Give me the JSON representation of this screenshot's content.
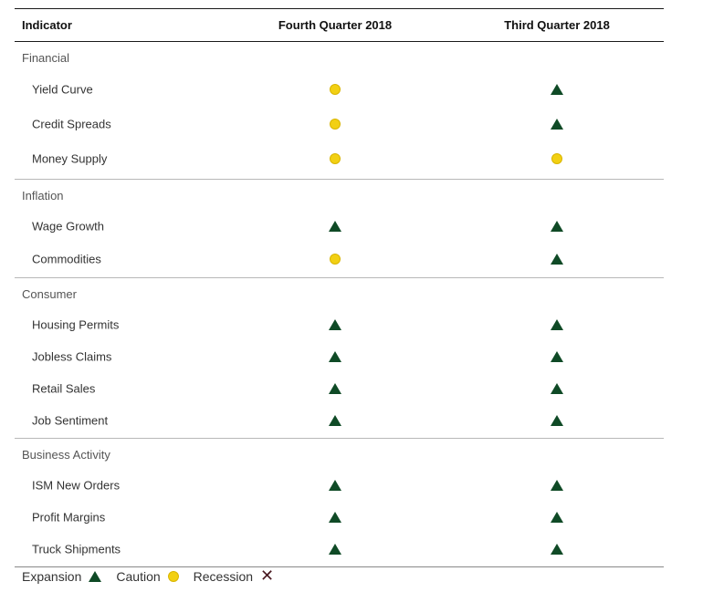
{
  "header": {
    "indicator_label": "Indicator",
    "col_q4": "Fourth Quarter 2018",
    "col_q3": "Third Quarter 2018"
  },
  "groups": [
    {
      "title": "Financial",
      "rows": [
        {
          "label": "Yield Curve",
          "q4": "caution",
          "q3": "expansion"
        },
        {
          "label": "Credit Spreads",
          "q4": "caution",
          "q3": "expansion"
        },
        {
          "label": "Money Supply",
          "q4": "caution",
          "q3": "caution"
        }
      ]
    },
    {
      "title": "Inflation",
      "rows": [
        {
          "label": "Wage Growth",
          "q4": "expansion",
          "q3": "expansion"
        },
        {
          "label": "Commodities",
          "q4": "caution",
          "q3": "expansion"
        }
      ]
    },
    {
      "title": "Consumer",
      "rows": [
        {
          "label": "Housing Permits",
          "q4": "expansion",
          "q3": "expansion"
        },
        {
          "label": "Jobless Claims",
          "q4": "expansion",
          "q3": "expansion"
        },
        {
          "label": "Retail Sales",
          "q4": "expansion",
          "q3": "expansion"
        },
        {
          "label": "Job Sentiment",
          "q4": "expansion",
          "q3": "expansion"
        }
      ]
    },
    {
      "title": "Business Activity",
      "rows": [
        {
          "label": "ISM New Orders",
          "q4": "expansion",
          "q3": "expansion"
        },
        {
          "label": "Profit Margins",
          "q4": "expansion",
          "q3": "expansion"
        },
        {
          "label": "Truck Shipments",
          "q4": "expansion",
          "q3": "expansion"
        }
      ]
    }
  ],
  "legend": {
    "expansion_label": "Expansion",
    "caution_label": "Caution",
    "recession_label": "Recession",
    "recession_symbol": "✕"
  },
  "colors": {
    "expansion": "#0f4a26",
    "caution": "#f2d013",
    "recession": "#4a1a22"
  },
  "icons": {
    "expansion": "triangle-up-icon",
    "caution": "circle-icon",
    "recession": "x-mark-icon"
  }
}
